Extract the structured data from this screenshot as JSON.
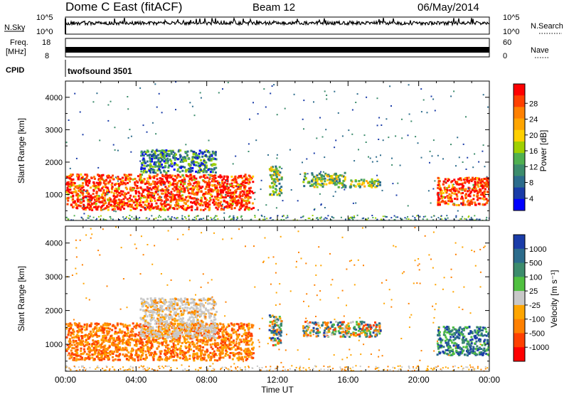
{
  "header": {
    "title": "Dome C East (fitACF)",
    "beam": "Beam 12",
    "date": "06/May/2014"
  },
  "panels": {
    "nsky_label": "N.Sky",
    "nsky_ticks": [
      "10^5",
      "10^0"
    ],
    "nsearch_label": "N.Search",
    "freq_label_1": "Freq.",
    "freq_label_2": "[MHz]",
    "freq_ticks": [
      "18",
      "8"
    ],
    "nave_label": "Nave",
    "nave_ticks": [
      "60",
      "0"
    ],
    "cpid_label": "CPID",
    "cpid_value": "twofsound 3501"
  },
  "chart_data": [
    {
      "type": "heatmap",
      "name": "power",
      "ylabel": "Slant Range [km]",
      "xlabel": "Time UT",
      "x_ticks": [
        "00:00",
        "04:00",
        "08:00",
        "12:00",
        "16:00",
        "20:00",
        "00:00"
      ],
      "y_ticks": [
        "1000",
        "2000",
        "3000",
        "4000"
      ],
      "ylim": [
        200,
        4500
      ],
      "xlim_hours": [
        0,
        24
      ],
      "colorbar": {
        "label": "Power [dB]",
        "ticks": [
          "28",
          "24",
          "20",
          "16",
          "12",
          "8",
          "4"
        ],
        "colors": [
          "#ff0000",
          "#ff4000",
          "#ff8000",
          "#ffa500",
          "#ffd000",
          "#a0d000",
          "#50b050",
          "#3c8c6c",
          "#2c6c8c",
          "#1a3ca8",
          "#0000ff"
        ]
      },
      "regions": [
        {
          "t0": 0.0,
          "t1": 10.6,
          "r_low": 550,
          "r_high": 1650,
          "level": "high"
        },
        {
          "t0": 4.2,
          "t1": 8.5,
          "r_low": 1700,
          "r_high": 2400,
          "level": "low"
        },
        {
          "t0": 11.5,
          "t1": 12.2,
          "r_low": 1000,
          "r_high": 1900,
          "level": "medium"
        },
        {
          "t0": 13.4,
          "t1": 15.8,
          "r_low": 1250,
          "r_high": 1700,
          "level": "medium"
        },
        {
          "t0": 16.0,
          "t1": 17.8,
          "r_low": 1250,
          "r_high": 1500,
          "level": "medium"
        },
        {
          "t0": 21.0,
          "t1": 24.0,
          "r_low": 700,
          "r_high": 1550,
          "level": "high"
        }
      ]
    },
    {
      "type": "heatmap",
      "name": "velocity",
      "ylabel": "Slant Range [km]",
      "xlabel": "Time UT",
      "x_ticks": [
        "00:00",
        "04:00",
        "08:00",
        "12:00",
        "16:00",
        "20:00",
        "00:00"
      ],
      "y_ticks": [
        "1000",
        "2000",
        "3000",
        "4000"
      ],
      "ylim": [
        200,
        4500
      ],
      "xlim_hours": [
        0,
        24
      ],
      "colorbar": {
        "label": "Velocity [m s⁻¹]",
        "ticks": [
          "1000",
          "500",
          "100",
          "25",
          "-25",
          "-100",
          "-500",
          "-1000"
        ],
        "colors": [
          "#1a3ca8",
          "#2c6c8c",
          "#3c8c6c",
          "#50c040",
          "#c8c8c8",
          "#ffa500",
          "#ff8000",
          "#ff4000",
          "#ff0000"
        ]
      },
      "regions": [
        {
          "t0": 0.0,
          "t1": 10.6,
          "r_low": 550,
          "r_high": 1650,
          "sign": "negative"
        },
        {
          "t0": 4.2,
          "t1": 8.5,
          "r_low": 1200,
          "r_high": 2400,
          "sign": "near-zero"
        },
        {
          "t0": 11.5,
          "t1": 12.2,
          "r_low": 1000,
          "r_high": 1900,
          "sign": "mixed"
        },
        {
          "t0": 13.4,
          "t1": 17.8,
          "r_low": 1250,
          "r_high": 1700,
          "sign": "mixed"
        },
        {
          "t0": 21.0,
          "t1": 24.0,
          "r_low": 700,
          "r_high": 1550,
          "sign": "positive"
        }
      ]
    }
  ]
}
